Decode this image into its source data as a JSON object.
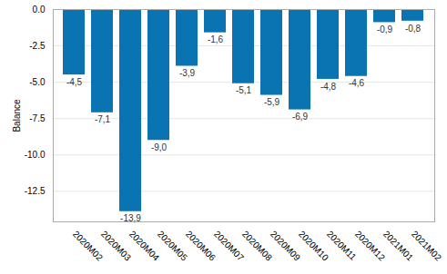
{
  "chart_data": {
    "type": "bar",
    "y_label": "Balance",
    "categories": [
      "2020M02",
      "2020M03",
      "2020M04",
      "2020M05",
      "2020M06",
      "2020M07",
      "2020M08",
      "2020M09",
      "2020M10",
      "2020M11",
      "2020M12",
      "2021M01",
      "2021M02"
    ],
    "values": [
      -4.5,
      -7.1,
      -13.9,
      -9.0,
      -3.9,
      -1.6,
      -5.1,
      -5.9,
      -6.9,
      -4.8,
      -4.6,
      -0.9,
      -0.8
    ],
    "value_labels": [
      "-4,5",
      "-7,1",
      "-13,9",
      "-9,0",
      "-3,9",
      "-1,6",
      "-5,1",
      "-5,9",
      "-6,9",
      "-4,8",
      "-4,6",
      "-0,9",
      "-0,8"
    ],
    "color": "#0a73b2",
    "ylim": [
      -14.6,
      0
    ],
    "yticks": [
      {
        "value": 0,
        "label": "0.0"
      },
      -2.5,
      {
        "value": -5,
        "label": "-5.0"
      },
      -7.5,
      {
        "value": -10,
        "label": "-10.0"
      },
      -12.5
    ],
    "grid": true,
    "data_labels": true
  }
}
